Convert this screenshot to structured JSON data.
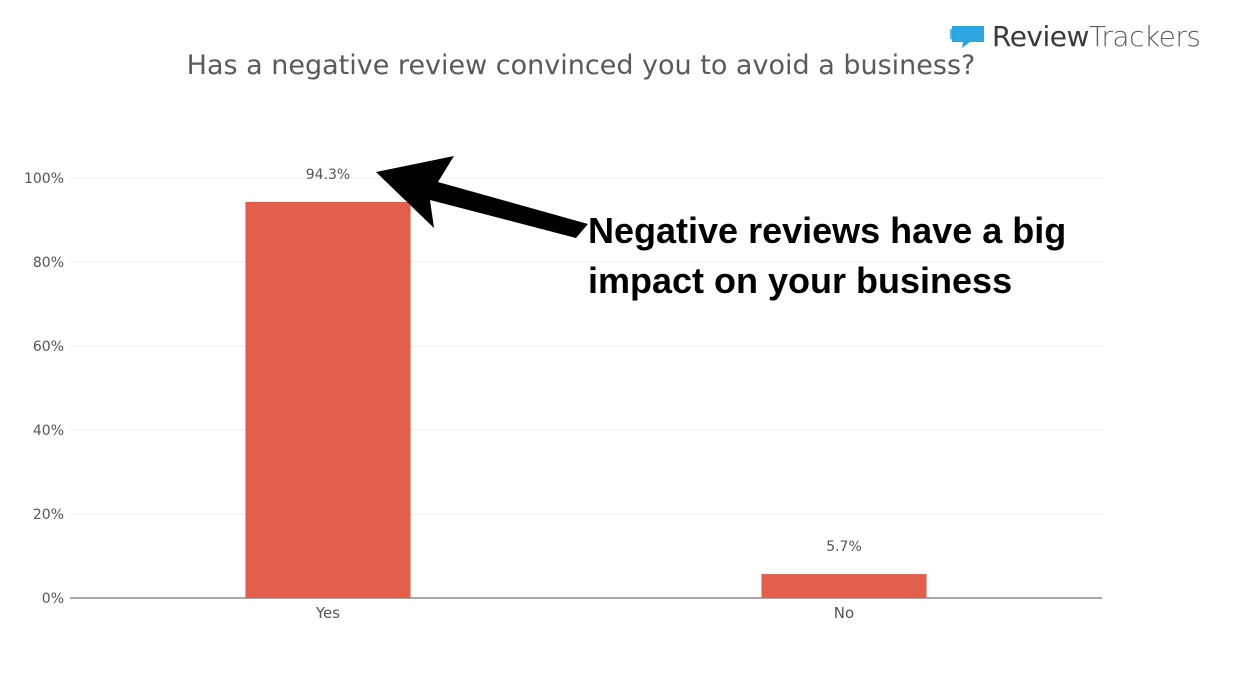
{
  "brand": {
    "logo_part1": "Review",
    "logo_part2": "Trackers",
    "icon": "speech-bubble-icon",
    "icon_color": "#2ba6de"
  },
  "annotation": {
    "text": "Negative reviews have a big impact on your business",
    "arrow_icon": "arrow-left-icon",
    "color": "#000000"
  },
  "chart_data": {
    "type": "bar",
    "title": "Has a negative review convinced you to avoid a business?",
    "categories": [
      "Yes",
      "No"
    ],
    "values": [
      94.3,
      5.7
    ],
    "data_labels": [
      "94.3%",
      "5.7%"
    ],
    "xlabel": "",
    "ylabel": "",
    "ylim": [
      0,
      100
    ],
    "yticks": [
      0,
      20,
      40,
      60,
      80,
      100
    ],
    "ytick_labels": [
      "0%",
      "20%",
      "40%",
      "60%",
      "80%",
      "100%"
    ],
    "grid": true,
    "legend": "none",
    "bar_color": "#e35f4b",
    "gridline_color": "#eeeeee",
    "axis_color": "#888888"
  }
}
